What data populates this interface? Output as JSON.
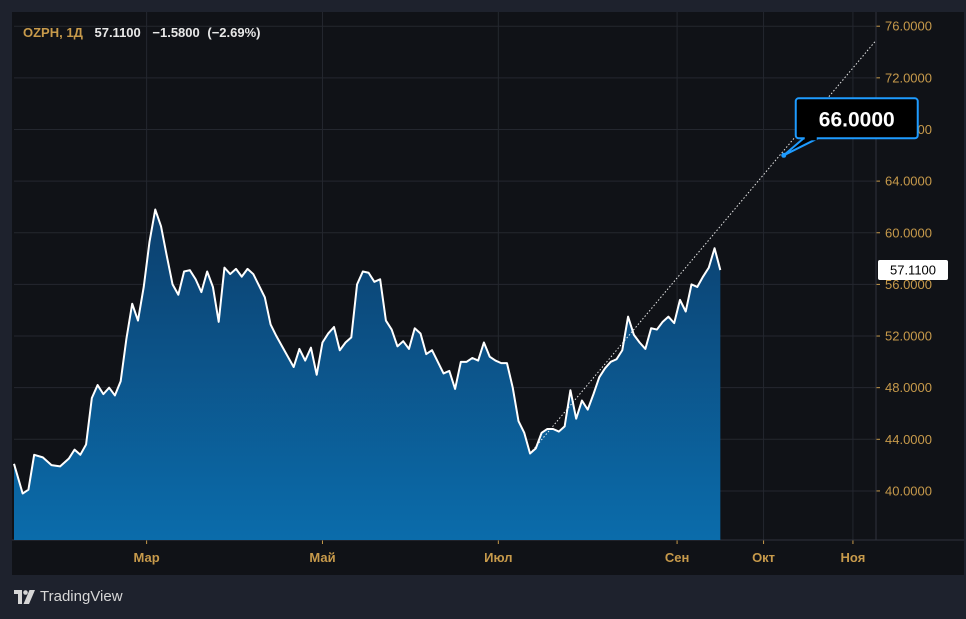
{
  "header": {
    "symbol": "OZPH",
    "interval": "1Д",
    "last": "57.1100",
    "change": "−1.5800",
    "change_pct": "(−2.69%)"
  },
  "colors": {
    "background": "#101217",
    "outer": "#1e222d",
    "grid": "#24272f",
    "line": "#ffffff",
    "area_top": "#0c3f6d",
    "area_bottom": "#0b6cab",
    "axis_text": "#c79a4b",
    "callout_border": "#1e9bff",
    "callout_bg": "#000000"
  },
  "chart_data": {
    "type": "area",
    "title": "",
    "xlabel": "",
    "ylabel": "",
    "y_axis_position": "right",
    "grid": true,
    "ylim": [
      36.2,
      77.1
    ],
    "xlim": [
      "2024-01-15",
      "2024-11-09"
    ],
    "y_ticks": [
      "40.0000",
      "44.0000",
      "48.0000",
      "52.0000",
      "56.0000",
      "60.0000",
      "64.0000",
      "68.0000",
      "72.0000",
      "76.0000"
    ],
    "x_ticks": [
      {
        "label": "Мар",
        "date": "2024-03-01"
      },
      {
        "label": "Май",
        "date": "2024-05-01"
      },
      {
        "label": "Июл",
        "date": "2024-07-01"
      },
      {
        "label": "Сен",
        "date": "2024-09-01"
      },
      {
        "label": "Окт",
        "date": "2024-10-01"
      },
      {
        "label": "Ноя",
        "date": "2024-11-01"
      }
    ],
    "series": [
      {
        "points": [
          [
            "2024-01-15",
            42.1
          ],
          [
            "2024-01-18",
            39.8
          ],
          [
            "2024-01-20",
            40.1
          ],
          [
            "2024-01-22",
            42.8
          ],
          [
            "2024-01-25",
            42.6
          ],
          [
            "2024-01-28",
            42.0
          ],
          [
            "2024-01-31",
            41.9
          ],
          [
            "2024-02-03",
            42.5
          ],
          [
            "2024-02-05",
            43.2
          ],
          [
            "2024-02-07",
            42.8
          ],
          [
            "2024-02-09",
            43.6
          ],
          [
            "2024-02-11",
            47.2
          ],
          [
            "2024-02-13",
            48.2
          ],
          [
            "2024-02-15",
            47.5
          ],
          [
            "2024-02-17",
            48.0
          ],
          [
            "2024-02-19",
            47.4
          ],
          [
            "2024-02-21",
            48.5
          ],
          [
            "2024-02-23",
            51.8
          ],
          [
            "2024-02-25",
            54.5
          ],
          [
            "2024-02-27",
            53.2
          ],
          [
            "2024-02-29",
            55.8
          ],
          [
            "2024-03-02",
            59.3
          ],
          [
            "2024-03-04",
            61.8
          ],
          [
            "2024-03-06",
            60.5
          ],
          [
            "2024-03-08",
            58.2
          ],
          [
            "2024-03-10",
            56.0
          ],
          [
            "2024-03-12",
            55.2
          ],
          [
            "2024-03-14",
            57.0
          ],
          [
            "2024-03-16",
            57.1
          ],
          [
            "2024-03-18",
            56.4
          ],
          [
            "2024-03-20",
            55.4
          ],
          [
            "2024-03-22",
            57.0
          ],
          [
            "2024-03-24",
            55.8
          ],
          [
            "2024-03-26",
            53.1
          ],
          [
            "2024-03-28",
            57.3
          ],
          [
            "2024-03-30",
            56.8
          ],
          [
            "2024-04-01",
            57.2
          ],
          [
            "2024-04-03",
            56.6
          ],
          [
            "2024-04-05",
            57.2
          ],
          [
            "2024-04-07",
            56.8
          ],
          [
            "2024-04-09",
            55.9
          ],
          [
            "2024-04-11",
            55.0
          ],
          [
            "2024-04-13",
            52.9
          ],
          [
            "2024-04-15",
            52.0
          ],
          [
            "2024-04-17",
            51.2
          ],
          [
            "2024-04-19",
            50.4
          ],
          [
            "2024-04-21",
            49.6
          ],
          [
            "2024-04-23",
            51.0
          ],
          [
            "2024-04-25",
            50.1
          ],
          [
            "2024-04-27",
            51.1
          ],
          [
            "2024-04-29",
            49.0
          ],
          [
            "2024-05-01",
            51.5
          ],
          [
            "2024-05-03",
            52.2
          ],
          [
            "2024-05-05",
            52.7
          ],
          [
            "2024-05-07",
            50.9
          ],
          [
            "2024-05-09",
            51.5
          ],
          [
            "2024-05-11",
            51.9
          ],
          [
            "2024-05-13",
            56.0
          ],
          [
            "2024-05-15",
            57.0
          ],
          [
            "2024-05-17",
            56.9
          ],
          [
            "2024-05-19",
            56.2
          ],
          [
            "2024-05-21",
            56.4
          ],
          [
            "2024-05-23",
            53.2
          ],
          [
            "2024-05-25",
            52.5
          ],
          [
            "2024-05-27",
            51.2
          ],
          [
            "2024-05-29",
            51.6
          ],
          [
            "2024-05-31",
            51.0
          ],
          [
            "2024-06-02",
            52.6
          ],
          [
            "2024-06-04",
            52.2
          ],
          [
            "2024-06-06",
            50.6
          ],
          [
            "2024-06-08",
            50.9
          ],
          [
            "2024-06-10",
            50.0
          ],
          [
            "2024-06-12",
            49.1
          ],
          [
            "2024-06-14",
            49.3
          ],
          [
            "2024-06-16",
            47.9
          ],
          [
            "2024-06-18",
            50.0
          ],
          [
            "2024-06-20",
            50.0
          ],
          [
            "2024-06-22",
            50.3
          ],
          [
            "2024-06-24",
            50.1
          ],
          [
            "2024-06-26",
            51.5
          ],
          [
            "2024-06-28",
            50.4
          ],
          [
            "2024-06-30",
            50.1
          ],
          [
            "2024-07-02",
            49.9
          ],
          [
            "2024-07-04",
            49.9
          ],
          [
            "2024-07-06",
            48.0
          ],
          [
            "2024-07-08",
            45.4
          ],
          [
            "2024-07-10",
            44.5
          ],
          [
            "2024-07-12",
            42.9
          ],
          [
            "2024-07-14",
            43.3
          ],
          [
            "2024-07-16",
            44.5
          ],
          [
            "2024-07-18",
            44.8
          ],
          [
            "2024-07-20",
            44.8
          ],
          [
            "2024-07-22",
            44.6
          ],
          [
            "2024-07-24",
            45.0
          ],
          [
            "2024-07-26",
            47.8
          ],
          [
            "2024-07-28",
            45.6
          ],
          [
            "2024-07-30",
            47.0
          ],
          [
            "2024-08-01",
            46.3
          ],
          [
            "2024-08-03",
            47.5
          ],
          [
            "2024-08-05",
            48.8
          ],
          [
            "2024-08-07",
            49.5
          ],
          [
            "2024-08-09",
            50.0
          ],
          [
            "2024-08-11",
            50.2
          ],
          [
            "2024-08-13",
            50.9
          ],
          [
            "2024-08-15",
            53.5
          ],
          [
            "2024-08-17",
            52.1
          ],
          [
            "2024-08-19",
            51.5
          ],
          [
            "2024-08-21",
            51.0
          ],
          [
            "2024-08-23",
            52.6
          ],
          [
            "2024-08-25",
            52.5
          ],
          [
            "2024-08-27",
            53.1
          ],
          [
            "2024-08-29",
            53.5
          ],
          [
            "2024-08-31",
            53.0
          ],
          [
            "2024-09-02",
            54.8
          ],
          [
            "2024-09-04",
            53.9
          ],
          [
            "2024-09-06",
            56.0
          ],
          [
            "2024-09-08",
            55.8
          ],
          [
            "2024-09-10",
            56.6
          ],
          [
            "2024-09-12",
            57.3
          ],
          [
            "2024-09-14",
            58.8
          ],
          [
            "2024-09-16",
            57.11
          ]
        ]
      }
    ],
    "trend_line": {
      "from": [
        "2024-07-12",
        42.9
      ],
      "to": [
        "2024-11-09",
        74.9
      ]
    },
    "price_label": "57.1100",
    "callout": {
      "text": "66.0000",
      "date": "2024-10-08",
      "value": 66.0
    }
  },
  "footer": {
    "brand": "TradingView"
  }
}
